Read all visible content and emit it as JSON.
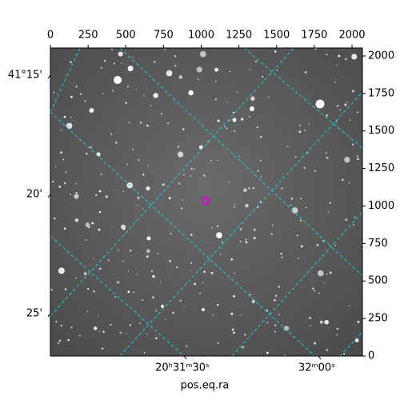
{
  "chart_data": {
    "type": "image",
    "x_label": "pos.eq.ra",
    "xlim": [
      0,
      2069
    ],
    "ylim": [
      0,
      2053
    ],
    "xticks": [
      0,
      250,
      500,
      750,
      1000,
      1250,
      1500,
      1750,
      2000
    ],
    "yticks": [
      0,
      250,
      500,
      750,
      1000,
      1250,
      1500,
      1750,
      2000
    ],
    "dec_labels": [
      "41°15'",
      "20'",
      "25'"
    ],
    "ra_labels": [
      "20ʰ31ᵐ30ˢ",
      "32ᵐ00ˢ"
    ],
    "markers": {
      "x": [
        1030
      ],
      "y": [
        1035
      ],
      "color": "#e000e0"
    },
    "grid_color": "#19d3d3"
  }
}
